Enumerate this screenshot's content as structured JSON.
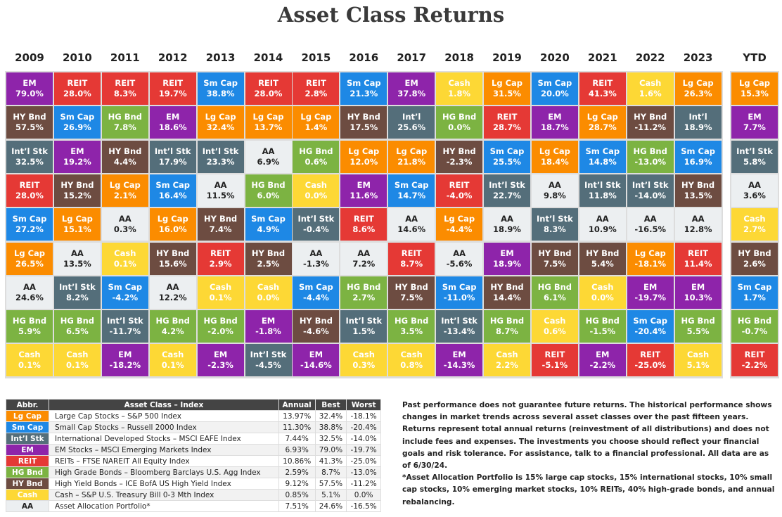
{
  "title": "Asset Class Returns",
  "colors": {
    "EM": "#8e24aa",
    "REIT": "#e53935",
    "Sm Cap": "#1e88e5",
    "Lg Cap": "#fb8c00",
    "HY Bnd": "#6d4c41",
    "HG Bnd": "#7cb342",
    "Int'l Stk": "#546e7a",
    "AA": "#eceff1",
    "Cash": "#fdd835"
  },
  "chart_data": {
    "type": "table",
    "title": "Asset Class Returns",
    "columns": [
      {
        "year": "2009",
        "cells": [
          [
            "EM",
            "79.0%"
          ],
          [
            "HY Bnd",
            "57.5%"
          ],
          [
            "Int’l Stk",
            "32.5%"
          ],
          [
            "REIT",
            "28.0%"
          ],
          [
            "Sm Cap",
            "27.2%"
          ],
          [
            "Lg Cap",
            "26.5%"
          ],
          [
            "AA",
            "24.6%"
          ],
          [
            "HG Bnd",
            "5.9%"
          ],
          [
            "Cash",
            "0.1%"
          ]
        ]
      },
      {
        "year": "2010",
        "cells": [
          [
            "REIT",
            "28.0%"
          ],
          [
            "Sm Cap",
            "26.9%"
          ],
          [
            "EM",
            "19.2%"
          ],
          [
            "HY Bnd",
            "15.2%"
          ],
          [
            "Lg Cap",
            "15.1%"
          ],
          [
            "AA",
            "13.5%"
          ],
          [
            "Int’l Stk",
            "8.2%"
          ],
          [
            "HG Bnd",
            "6.5%"
          ],
          [
            "Cash",
            "0.1%"
          ]
        ]
      },
      {
        "year": "2011",
        "cells": [
          [
            "REIT",
            "8.3%"
          ],
          [
            "HG Bnd",
            "7.8%"
          ],
          [
            "HY Bnd",
            "4.4%"
          ],
          [
            "Lg Cap",
            "2.1%"
          ],
          [
            "AA",
            "0.3%"
          ],
          [
            "Cash",
            "0.1%"
          ],
          [
            "Sm Cap",
            "-4.2%"
          ],
          [
            "Int’l Stk",
            "-11.7%"
          ],
          [
            "EM",
            "-18.2%"
          ]
        ]
      },
      {
        "year": "2012",
        "cells": [
          [
            "REIT",
            "19.7%"
          ],
          [
            "EM",
            "18.6%"
          ],
          [
            "Int’l Stk",
            "17.9%"
          ],
          [
            "Sm Cap",
            "16.4%"
          ],
          [
            "Lg Cap",
            "16.0%"
          ],
          [
            "HY Bnd",
            "15.6%"
          ],
          [
            "AA",
            "12.2%"
          ],
          [
            "HG Bnd",
            "4.2%"
          ],
          [
            "Cash",
            "0.1%"
          ]
        ]
      },
      {
        "year": "2013",
        "cells": [
          [
            "Sm Cap",
            "38.8%"
          ],
          [
            "Lg Cap",
            "32.4%"
          ],
          [
            "Int’l Stk",
            "23.3%"
          ],
          [
            "AA",
            "11.5%"
          ],
          [
            "HY Bnd",
            "7.4%"
          ],
          [
            "REIT",
            "2.9%"
          ],
          [
            "Cash",
            "0.1%"
          ],
          [
            "HG Bnd",
            "-2.0%"
          ],
          [
            "EM",
            "-2.3%"
          ]
        ]
      },
      {
        "year": "2014",
        "cells": [
          [
            "REIT",
            "28.0%"
          ],
          [
            "Lg Cap",
            "13.7%"
          ],
          [
            "AA",
            "6.9%"
          ],
          [
            "HG Bnd",
            "6.0%"
          ],
          [
            "Sm Cap",
            "4.9%"
          ],
          [
            "HY Bnd",
            "2.5%"
          ],
          [
            "Cash",
            "0.0%"
          ],
          [
            "EM",
            "-1.8%"
          ],
          [
            "Int’l Stk",
            "-4.5%"
          ]
        ]
      },
      {
        "year": "2015",
        "cells": [
          [
            "REIT",
            "2.8%"
          ],
          [
            "Lg Cap",
            "1.4%"
          ],
          [
            "HG Bnd",
            "0.6%"
          ],
          [
            "Cash",
            "0.0%"
          ],
          [
            "Int’l Stk",
            "-0.4%"
          ],
          [
            "AA",
            "-1.3%"
          ],
          [
            "Sm Cap",
            "-4.4%"
          ],
          [
            "HY Bnd",
            "-4.6%"
          ],
          [
            "EM",
            "-14.6%"
          ]
        ]
      },
      {
        "year": "2016",
        "cells": [
          [
            "Sm Cap",
            "21.3%"
          ],
          [
            "HY Bnd",
            "17.5%"
          ],
          [
            "Lg Cap",
            "12.0%"
          ],
          [
            "EM",
            "11.6%"
          ],
          [
            "REIT",
            "8.6%"
          ],
          [
            "AA",
            "7.2%"
          ],
          [
            "HG Bnd",
            "2.7%"
          ],
          [
            "Int’l Stk",
            "1.5%"
          ],
          [
            "Cash",
            "0.3%"
          ]
        ]
      },
      {
        "year": "2017",
        "cells": [
          [
            "EM",
            "37.8%"
          ],
          [
            "Int’l",
            "25.6%"
          ],
          [
            "Lg Cap",
            "21.8%"
          ],
          [
            "Sm Cap",
            "14.7%"
          ],
          [
            "AA",
            "14.6%"
          ],
          [
            "REIT",
            "8.7%"
          ],
          [
            "HY Bnd",
            "7.5%"
          ],
          [
            "HG Bnd",
            "3.5%"
          ],
          [
            "Cash",
            "0.8%"
          ]
        ]
      },
      {
        "year": "2018",
        "cells": [
          [
            "Cash",
            "1.8%"
          ],
          [
            "HG Bnd",
            "0.0%"
          ],
          [
            "HY Bnd",
            "-2.3%"
          ],
          [
            "REIT",
            "-4.0%"
          ],
          [
            "Lg Cap",
            "-4.4%"
          ],
          [
            "AA",
            "-5.6%"
          ],
          [
            "Sm Cap",
            "-11.0%"
          ],
          [
            "Int’l Stk",
            "-13.4%"
          ],
          [
            "EM",
            "-14.3%"
          ]
        ]
      },
      {
        "year": "2019",
        "cells": [
          [
            "Lg Cap",
            "31.5%"
          ],
          [
            "REIT",
            "28.7%"
          ],
          [
            "Sm Cap",
            "25.5%"
          ],
          [
            "Int’l Stk",
            "22.7%"
          ],
          [
            "AA",
            "18.9%"
          ],
          [
            "EM",
            "18.9%"
          ],
          [
            "HY Bnd",
            "14.4%"
          ],
          [
            "HG Bnd",
            "8.7%"
          ],
          [
            "Cash",
            "2.2%"
          ]
        ]
      },
      {
        "year": "2020",
        "cells": [
          [
            "Sm Cap",
            "20.0%"
          ],
          [
            "EM",
            "18.7%"
          ],
          [
            "Lg Cap",
            "18.4%"
          ],
          [
            "AA",
            "9.8%"
          ],
          [
            "Int’l Stk",
            "8.3%"
          ],
          [
            "HY Bnd",
            "7.5%"
          ],
          [
            "HG Bnd",
            "6.1%"
          ],
          [
            "Cash",
            "0.6%"
          ],
          [
            "REIT",
            "-5.1%"
          ]
        ]
      },
      {
        "year": "2021",
        "cells": [
          [
            "REIT",
            "41.3%"
          ],
          [
            "Lg Cap",
            "28.7%"
          ],
          [
            "Sm Cap",
            "14.8%"
          ],
          [
            "Int’l Stk",
            "11.8%"
          ],
          [
            "AA",
            "10.9%"
          ],
          [
            "HY Bnd",
            "5.4%"
          ],
          [
            "Cash",
            "0.0%"
          ],
          [
            "HG Bnd",
            "-1.5%"
          ],
          [
            "EM",
            "-2.2%"
          ]
        ]
      },
      {
        "year": "2022",
        "cells": [
          [
            "Cash",
            "1.6%"
          ],
          [
            "HY Bnd",
            "-11.2%"
          ],
          [
            "HG Bnd",
            "-13.0%"
          ],
          [
            "Int’l Stk",
            "-14.0%"
          ],
          [
            "AA",
            "-16.5%"
          ],
          [
            "Lg Cap",
            "-18.1%"
          ],
          [
            "EM",
            "-19.7%"
          ],
          [
            "Sm Cap",
            "-20.4%"
          ],
          [
            "REIT",
            "-25.0%"
          ]
        ]
      },
      {
        "year": "2023",
        "cells": [
          [
            "Lg Cap",
            "26.3%"
          ],
          [
            "Int’l",
            "18.9%"
          ],
          [
            "Sm Cap",
            "16.9%"
          ],
          [
            "HY Bnd",
            "13.5%"
          ],
          [
            "AA",
            "12.8%"
          ],
          [
            "REIT",
            "11.4%"
          ],
          [
            "EM",
            "10.3%"
          ],
          [
            "HG Bnd",
            "5.5%"
          ],
          [
            "Cash",
            "5.1%"
          ]
        ]
      },
      {
        "year": "YTD",
        "cells": [
          [
            "Lg Cap",
            "15.3%"
          ],
          [
            "EM",
            "7.7%"
          ],
          [
            "Int’l Stk",
            "5.8%"
          ],
          [
            "AA",
            "3.6%"
          ],
          [
            "Cash",
            "2.7%"
          ],
          [
            "HY Bnd",
            "2.6%"
          ],
          [
            "Sm Cap",
            "1.7%"
          ],
          [
            "HG Bnd",
            "-0.7%"
          ],
          [
            "REIT",
            "-2.2%"
          ]
        ]
      }
    ]
  },
  "legend": {
    "headers": [
      "Abbr.",
      "Asset Class – Index",
      "Annual",
      "Best",
      "Worst"
    ],
    "rows": [
      {
        "abbr": "Lg Cap",
        "key": "Lg Cap",
        "name": "Large Cap Stocks – S&P 500 Index",
        "annual": "13.97%",
        "best": "32.4%",
        "worst": "-18.1%"
      },
      {
        "abbr": "Sm Cap",
        "key": "Sm Cap",
        "name": "Small Cap Stocks – Russell 2000 Index",
        "annual": "11.30%",
        "best": "38.8%",
        "worst": "-20.4%"
      },
      {
        "abbr": "Int’l Stk",
        "key": "Int'l Stk",
        "name": "International Developed Stocks – MSCI EAFE Index",
        "annual": "7.44%",
        "best": "32.5%",
        "worst": "-14.0%"
      },
      {
        "abbr": "EM",
        "key": "EM",
        "name": "EM Stocks – MSCI Emerging Markets Index",
        "annual": "6.93%",
        "best": "79.0%",
        "worst": "-19.7%"
      },
      {
        "abbr": "REIT",
        "key": "REIT",
        "name": "REITs – FTSE NAREIT All Equity Index",
        "annual": "10.86%",
        "best": "41.3%",
        "worst": "-25.0%"
      },
      {
        "abbr": "HG Bnd",
        "key": "HG Bnd",
        "name": "High Grade Bonds – Bloomberg Barclays U.S. Agg Index",
        "annual": "2.59%",
        "best": "8.7%",
        "worst": "-13.0%"
      },
      {
        "abbr": "HY Bnd",
        "key": "HY Bnd",
        "name": "High Yield Bonds – ICE BofA US High Yield Index",
        "annual": "9.12%",
        "best": "57.5%",
        "worst": "-11.2%"
      },
      {
        "abbr": "Cash",
        "key": "Cash",
        "name": "Cash – S&P U.S. Treasury Bill 0-3 Mth Index",
        "annual": "0.85%",
        "best": "5.1%",
        "worst": "0.0%"
      },
      {
        "abbr": "AA",
        "key": "AA",
        "name": "Asset Allocation Portfolio*",
        "annual": "7.51%",
        "best": "24.6%",
        "worst": "-16.5%"
      }
    ]
  },
  "notes": {
    "disclaimer": "Past performance does not guarantee future returns. The historical performance shows changes in market trends across several asset classes over the past fifteen years. Returns represent total annual returns (reinvestment of all distributions) and does not include fees and expenses. The investments you choose should reflect your financial goals and risk tolerance. For assistance, talk to a financial professional. All data are as of 6/30/24.",
    "footnote": "*Asset Allocation Portfolio is 15% large cap stocks, 15% international stocks, 10% small cap stocks, 10% emerging market stocks, 10% REITs, 40% high-grade bonds, and annual rebalancing."
  }
}
